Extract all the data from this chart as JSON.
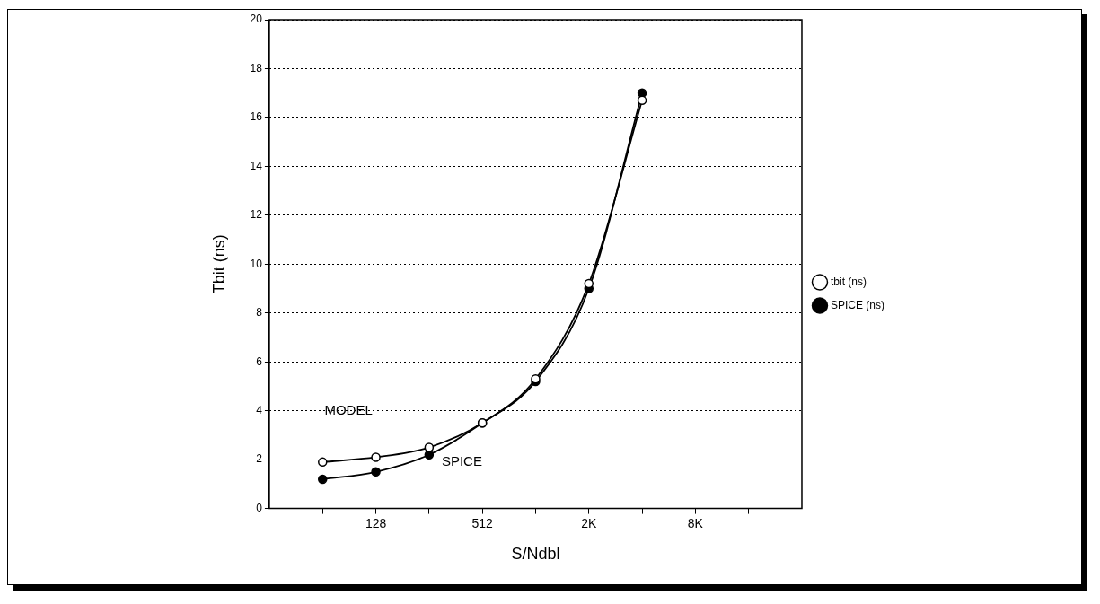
{
  "chart_data": {
    "type": "line",
    "xlabel": "S/Ndbl",
    "ylabel": "Tbit (ns)",
    "log": "x",
    "x": [
      64,
      128,
      256,
      512,
      1024,
      2048,
      4096
    ],
    "xlim": [
      32,
      32768
    ],
    "xticks": [
      {
        "value": 64,
        "label": null
      },
      128,
      {
        "value": 256,
        "label": null
      },
      512,
      {
        "value": 1024,
        "label": null
      },
      {
        "value": 2048,
        "label": "2K"
      },
      {
        "value": 4096,
        "label": null
      },
      {
        "value": 8192,
        "label": "8K"
      },
      {
        "value": 16384,
        "label": null
      }
    ],
    "ylim": [
      0,
      20
    ],
    "yticks": [
      0,
      2,
      4,
      6,
      8,
      10,
      12,
      14,
      16,
      18,
      20
    ],
    "series": [
      {
        "name": "tbit (ns)",
        "color": "#000000",
        "values": [
          1.9,
          2.1,
          2.5,
          3.5,
          5.3,
          9.2,
          16.7
        ]
      },
      {
        "name": "SPICE (ns)",
        "color": "#000000",
        "values": [
          1.2,
          1.5,
          2.2,
          3.5,
          5.2,
          9.0,
          17.0
        ]
      }
    ],
    "annotations": [
      "MODEL",
      "SPICE"
    ],
    "grid": "y",
    "legend": "right",
    "marker": "circle",
    "line_style": "solid"
  }
}
